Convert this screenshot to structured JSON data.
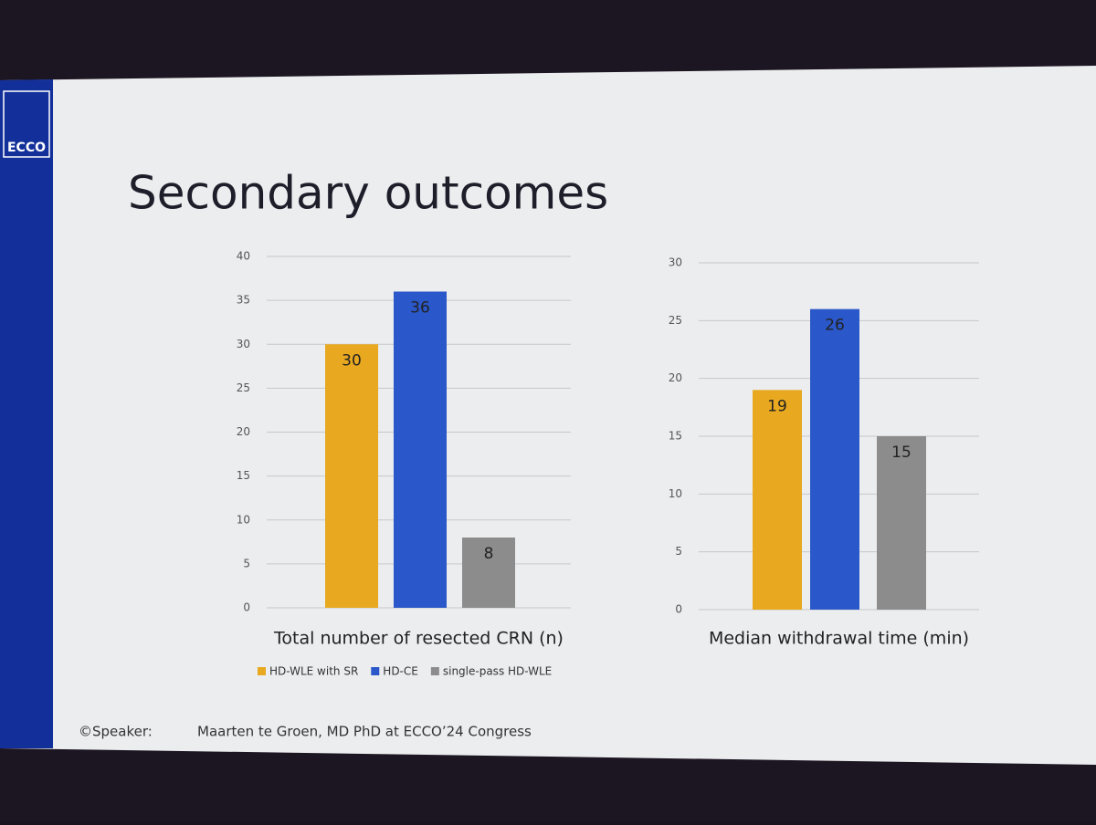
{
  "slide": {
    "logo": "ECCO",
    "title": "Secondary outcomes",
    "footer_label": "©Speaker:",
    "footer_text": "Maarten te Groen, MD PhD at ECCO’24 Congress"
  },
  "legend": [
    {
      "name": "HD-WLE with SR",
      "color": "#e8a820"
    },
    {
      "name": "HD-CE",
      "color": "#2a57c9"
    },
    {
      "name": "single-pass HD-WLE",
      "color": "#8c8c8c"
    }
  ],
  "chart_data": [
    {
      "type": "bar",
      "xlabel": "Total number of resected CRN (n)",
      "values": [
        30,
        36,
        8
      ],
      "colors": [
        "#e8a820",
        "#2a57c9",
        "#8c8c8c"
      ],
      "ylim": [
        0,
        40
      ],
      "yticks": [
        0,
        5,
        10,
        15,
        20,
        25,
        30,
        35,
        40
      ],
      "grid": true
    },
    {
      "type": "bar",
      "xlabel": "Median withdrawal time (min)",
      "values": [
        19,
        26,
        15
      ],
      "colors": [
        "#e8a820",
        "#2a57c9",
        "#8c8c8c"
      ],
      "ylim": [
        0,
        30
      ],
      "yticks": [
        0,
        5,
        10,
        15,
        20,
        25,
        30
      ],
      "grid": true
    }
  ]
}
